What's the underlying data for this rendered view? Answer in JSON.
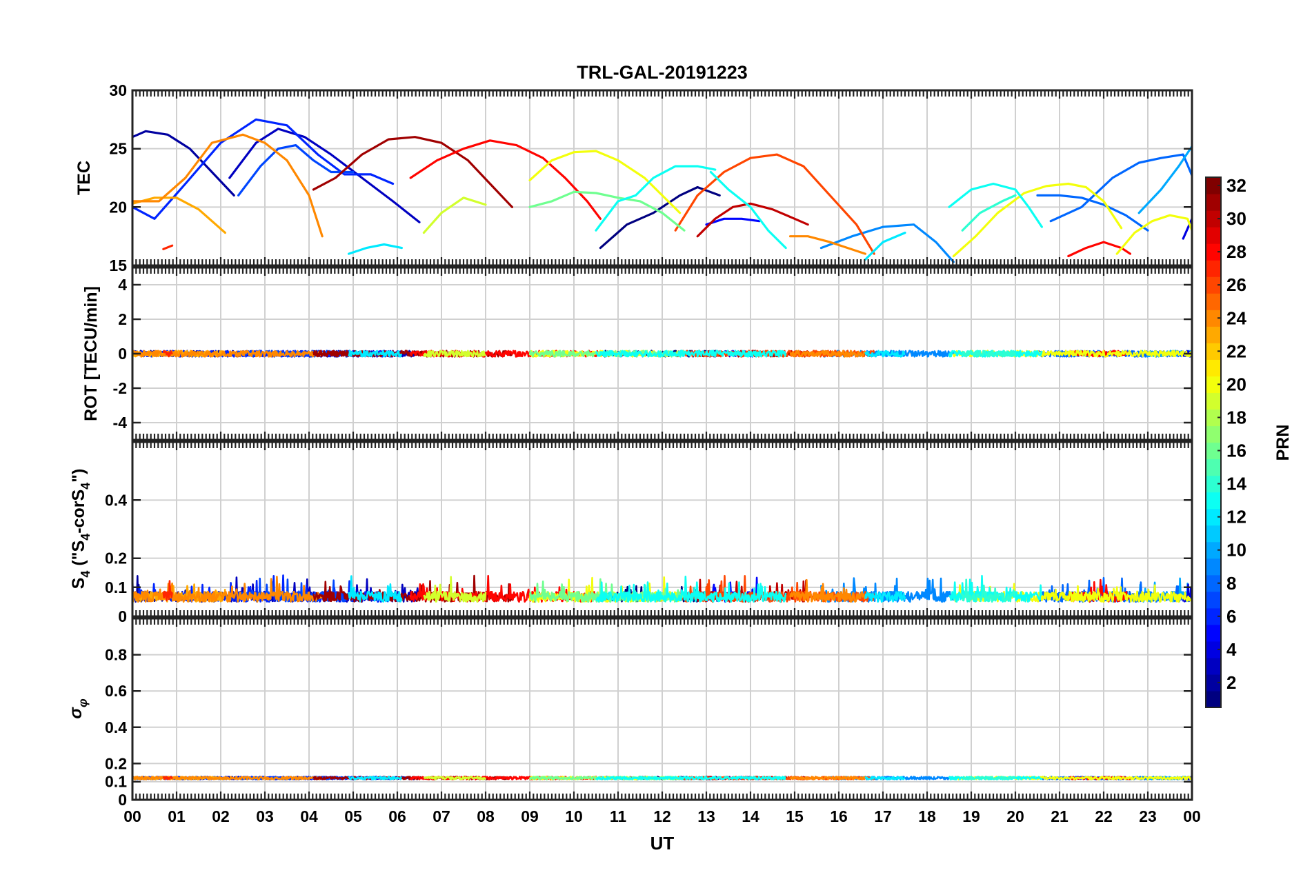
{
  "chart_data": {
    "type": "line",
    "title": "TRL-GAL-20191223",
    "xlabel": "UT",
    "x_ticks": [
      "00",
      "01",
      "02",
      "03",
      "04",
      "05",
      "06",
      "07",
      "08",
      "09",
      "10",
      "11",
      "12",
      "13",
      "14",
      "15",
      "16",
      "17",
      "18",
      "19",
      "20",
      "21",
      "22",
      "23",
      "00"
    ],
    "xlim": [
      0,
      24
    ],
    "colorbar": {
      "label": "PRN",
      "range": [
        1,
        32
      ],
      "ticks": [
        "2",
        "4",
        "6",
        "8",
        "10",
        "12",
        "14",
        "16",
        "18",
        "20",
        "22",
        "24",
        "26",
        "28",
        "30",
        "32"
      ],
      "colormap": "jet"
    },
    "panels": [
      {
        "name": "TEC",
        "ylabel": "TEC",
        "ylim": [
          15,
          30
        ],
        "yticks": [
          "15",
          "20",
          "25",
          "30"
        ],
        "series": [
          {
            "prn": 2,
            "x": [
              0.0,
              0.3,
              0.8,
              1.3,
              1.8,
              2.3
            ],
            "y": [
              26.0,
              26.5,
              26.2,
              25.0,
              23.0,
              21.0
            ]
          },
          {
            "prn": 3,
            "x": [
              2.2,
              2.8,
              3.3,
              3.9,
              4.5,
              5.2,
              5.9,
              6.5
            ],
            "y": [
              22.5,
              25.5,
              26.7,
              26.0,
              24.5,
              22.5,
              20.5,
              18.7
            ]
          },
          {
            "prn": 6,
            "x": [
              0.0,
              0.5,
              1.2,
              2.0,
              2.8,
              3.5,
              4.2,
              4.8,
              5.4,
              5.9
            ],
            "y": [
              20.0,
              19.0,
              22.0,
              25.5,
              27.5,
              27.0,
              24.5,
              22.8,
              22.8,
              22.0
            ]
          },
          {
            "prn": 1,
            "x": [
              10.6,
              11.2,
              11.8,
              12.4,
              12.8,
              13.3
            ],
            "y": [
              16.5,
              18.5,
              19.5,
              21.0,
              21.7,
              21.0
            ]
          },
          {
            "prn": 9,
            "x": [
              15.6,
              16.3,
              17.0,
              17.7,
              18.2,
              18.6
            ],
            "y": [
              16.5,
              17.5,
              18.3,
              18.5,
              17.0,
              15.3
            ]
          },
          {
            "prn": 8,
            "x": [
              20.8,
              21.5,
              22.2,
              22.8,
              23.3,
              23.8,
              24.0
            ],
            "y": [
              18.8,
              20.0,
              22.5,
              23.8,
              24.2,
              24.5,
              22.7
            ]
          },
          {
            "prn": 7,
            "x": [
              2.4,
              2.9,
              3.3,
              3.7,
              4.1,
              4.5,
              5.0
            ],
            "y": [
              21.0,
              23.5,
              25.0,
              25.3,
              24.0,
              23.0,
              23.0
            ]
          },
          {
            "prn": 10,
            "x": [
              22.8,
              23.3,
              23.7,
              24.0
            ],
            "y": [
              19.5,
              21.5,
              23.5,
              25.2
            ]
          },
          {
            "prn": 5,
            "x": [
              13.0,
              13.4,
              13.8,
              14.2
            ],
            "y": [
              18.5,
              19.0,
              19.0,
              18.8
            ]
          },
          {
            "prn": 4,
            "x": [
              23.8,
              24.0
            ],
            "y": [
              17.3,
              19.0
            ]
          },
          {
            "prn": 8,
            "x": [
              20.5,
              21.0,
              21.5,
              22.0,
              22.5,
              23.0
            ],
            "y": [
              21.0,
              21.0,
              20.8,
              20.2,
              19.3,
              18.0
            ]
          },
          {
            "prn": 23,
            "x": [
              0.0,
              0.5,
              1.0,
              1.5,
              2.1
            ],
            "y": [
              20.3,
              20.8,
              20.8,
              19.8,
              17.8
            ]
          },
          {
            "prn": 24,
            "x": [
              0.0,
              0.6,
              1.2,
              1.8,
              2.5,
              3.0,
              3.5,
              4.0,
              4.3
            ],
            "y": [
              20.5,
              20.5,
              22.5,
              25.5,
              26.2,
              25.5,
              24.0,
              21.0,
              17.5
            ]
          },
          {
            "prn": 31,
            "x": [
              4.1,
              4.6,
              5.2,
              5.8,
              6.4,
              7.0,
              7.6,
              8.1,
              8.6
            ],
            "y": [
              21.5,
              22.5,
              24.5,
              25.8,
              26.0,
              25.5,
              24.0,
              22.0,
              20.0
            ]
          },
          {
            "prn": 28,
            "x": [
              6.3,
              6.9,
              7.5,
              8.1,
              8.7,
              9.3,
              9.8,
              10.3,
              10.6
            ],
            "y": [
              22.5,
              24.0,
              25.0,
              25.7,
              25.3,
              24.2,
              22.5,
              20.5,
              19.0
            ]
          },
          {
            "prn": 30,
            "x": [
              12.8,
              13.2,
              13.6,
              14.0,
              14.5,
              15.0,
              15.3
            ],
            "y": [
              17.5,
              19.0,
              20.0,
              20.3,
              19.8,
              19.0,
              18.5
            ]
          },
          {
            "prn": 26,
            "x": [
              12.3,
              12.8,
              13.4,
              14.0,
              14.6,
              15.2,
              15.8,
              16.4,
              16.8
            ],
            "y": [
              18.0,
              21.0,
              23.0,
              24.2,
              24.5,
              23.5,
              21.0,
              18.5,
              16.0
            ]
          },
          {
            "prn": 24,
            "x": [
              14.9,
              15.3,
              15.8,
              16.2,
              16.6
            ],
            "y": [
              17.5,
              17.5,
              17.0,
              16.5,
              16.0
            ]
          },
          {
            "prn": 27,
            "x": [
              0.7,
              0.9
            ],
            "y": [
              16.4,
              16.7
            ]
          },
          {
            "prn": 28,
            "x": [
              21.2,
              21.6,
              22.0,
              22.4,
              22.6
            ],
            "y": [
              15.8,
              16.5,
              17.0,
              16.5,
              16.0
            ]
          },
          {
            "prn": 20,
            "x": [
              9.0,
              9.5,
              10.0,
              10.5,
              11.0,
              11.6,
              12.0,
              12.4
            ],
            "y": [
              22.3,
              24.0,
              24.7,
              24.8,
              24.0,
              22.5,
              21.0,
              19.5
            ]
          },
          {
            "prn": 20,
            "x": [
              18.6,
              19.1,
              19.6,
              20.2,
              20.7,
              21.2,
              21.6,
              22.0,
              22.4
            ],
            "y": [
              15.8,
              17.5,
              19.5,
              21.2,
              21.8,
              22.0,
              21.7,
              20.5,
              18.2
            ]
          },
          {
            "prn": 20,
            "x": [
              22.3,
              22.7,
              23.1,
              23.5,
              23.9,
              24.0
            ],
            "y": [
              16.0,
              17.8,
              18.8,
              19.3,
              19.0,
              18.0
            ]
          },
          {
            "prn": 19,
            "x": [
              6.6,
              7.0,
              7.5,
              8.0
            ],
            "y": [
              17.8,
              19.5,
              20.8,
              20.2
            ]
          },
          {
            "prn": 16,
            "x": [
              9.0,
              9.5,
              10.0,
              10.5,
              11.0,
              11.5,
              12.0,
              12.5
            ],
            "y": [
              20.0,
              20.5,
              21.3,
              21.2,
              20.8,
              20.5,
              19.5,
              18.0
            ]
          },
          {
            "prn": 13,
            "x": [
              10.5,
              11.0,
              11.4,
              11.8,
              12.3,
              12.8,
              13.2
            ],
            "y": [
              18.0,
              20.5,
              21.0,
              22.5,
              23.5,
              23.5,
              23.2
            ]
          },
          {
            "prn": 13,
            "x": [
              13.1,
              13.5,
              14.0,
              14.4,
              14.8
            ],
            "y": [
              23.0,
              21.5,
              20.0,
              18.0,
              16.5
            ]
          },
          {
            "prn": 12,
            "x": [
              4.9,
              5.3,
              5.7,
              6.1
            ],
            "y": [
              16.0,
              16.5,
              16.8,
              16.5
            ]
          },
          {
            "prn": 12,
            "x": [
              16.6,
              17.0,
              17.5
            ],
            "y": [
              15.5,
              17.0,
              17.8
            ]
          },
          {
            "prn": 13,
            "x": [
              18.5,
              19.0,
              19.5,
              20.0,
              20.3,
              20.6
            ],
            "y": [
              20.0,
              21.5,
              22.0,
              21.5,
              20.0,
              18.3
            ]
          },
          {
            "prn": 14,
            "x": [
              18.8,
              19.2,
              19.7,
              20.0
            ],
            "y": [
              18.0,
              19.5,
              20.5,
              21.0
            ]
          }
        ]
      },
      {
        "name": "ROT",
        "ylabel": "ROT [TECU/min]",
        "ylim": [
          -5,
          5
        ],
        "yticks": [
          "-4",
          "-2",
          "0",
          "2",
          "4"
        ],
        "noise_level": 0.0
      },
      {
        "name": "S4",
        "ylabel": "S4 (\"S4-corS4\")",
        "ylim": [
          0,
          0.6
        ],
        "yticks": [
          "0",
          "0.1",
          "0.2",
          "0.4"
        ],
        "noise_level": 0.05
      },
      {
        "name": "sigma_phi",
        "ylabel": "σφ",
        "ylim": [
          0,
          1
        ],
        "yticks": [
          "0",
          "0.1",
          "0.2",
          "0.4",
          "0.6",
          "0.8"
        ],
        "noise_level": 0.12
      }
    ]
  },
  "labels": {
    "s4_ylabel_main": "S",
    "s4_ylabel_sub1": "4",
    "s4_ylabel_mid": " (\"S",
    "s4_ylabel_sub2": "4",
    "s4_ylabel_mid2": "-corS",
    "s4_ylabel_sub3": "4",
    "s4_ylabel_end": "\")",
    "sigma_main": "σ",
    "sigma_sub": "φ"
  }
}
